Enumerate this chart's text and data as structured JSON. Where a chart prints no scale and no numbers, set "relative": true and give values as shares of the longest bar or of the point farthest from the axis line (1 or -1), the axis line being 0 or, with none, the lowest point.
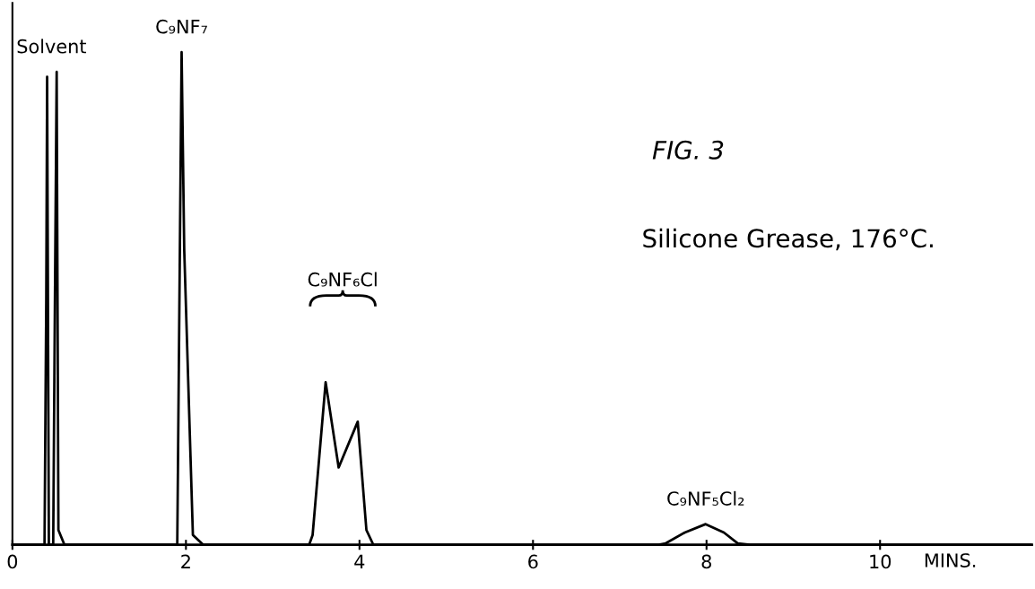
{
  "chart_data": {
    "type": "line",
    "title": "FIG. 3",
    "subtitle": "Silicone Grease, 176°C.",
    "xlabel": "MINS.",
    "relative": true,
    "xlim": [
      0,
      11.75
    ],
    "xticks": [
      0,
      2,
      4,
      6,
      8,
      10
    ],
    "series": [
      {
        "color": "#000000",
        "x": [
          0,
          0.37,
          0.39,
          0.4,
          0.42,
          0.47,
          0.49,
          0.51,
          0.53,
          0.6,
          1.9,
          1.93,
          1.95,
          1.98,
          2.08,
          2.2,
          3.42,
          3.46,
          3.61,
          3.76,
          3.98,
          4.08,
          4.16,
          4.25,
          7.45,
          7.53,
          7.75,
          7.99,
          8.2,
          8.36,
          8.5,
          11.75
        ],
        "values": [
          0,
          0,
          0.5,
          0.95,
          0,
          0,
          0.5,
          0.96,
          0.03,
          0,
          0,
          0.6,
          1.0,
          0.6,
          0.02,
          0,
          0,
          0.02,
          0.33,
          0.157,
          0.25,
          0.03,
          0,
          0,
          0,
          0.003,
          0.025,
          0.042,
          0.025,
          0.003,
          0,
          0
        ]
      }
    ],
    "annotations": [
      {
        "text": "Solvent",
        "x": 0.45,
        "y": 0.96
      },
      {
        "text": "C₉NF₇",
        "x": 1.95,
        "y": 1.0
      },
      "C₉NF₆Cl",
      {
        "text": "C₉NF₅Cl₂",
        "x": 7.99,
        "y": 0.042
      }
    ],
    "grid": false,
    "legend": false,
    "marker": "none",
    "line_style": "solid"
  }
}
